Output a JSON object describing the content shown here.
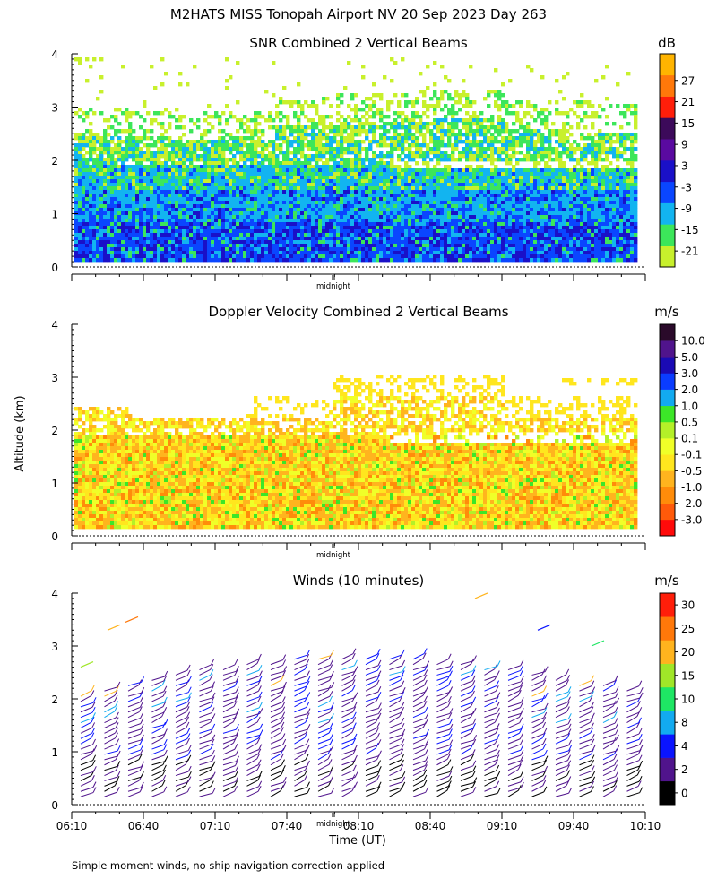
{
  "title": "M2HATS MISS Tonopah Airport NV  20 Sep 2023 Day 263",
  "y_axis_label": "Altitude (km)",
  "x_axis_label": "Time (UT)",
  "midnight_label": "midnight",
  "footnote": "Simple moment winds, no ship navigation correction applied",
  "chart_data": [
    {
      "type": "heatmap",
      "title": "SNR Combined 2 Vertical Beams",
      "unit": "dB",
      "ylabel": "",
      "ylim": [
        0,
        4
      ],
      "yticks": [
        "0",
        "1",
        "2",
        "3",
        "4"
      ],
      "colorbar_labels": [
        "-21",
        "-15",
        "-9",
        "-3",
        "3",
        "9",
        "15",
        "21",
        "27"
      ],
      "colorbar_colors": [
        "#c8f02c",
        "#3ce65a",
        "#12b4f0",
        "#0a46ff",
        "#1a10c8",
        "#5a0aa0",
        "#3c0a5a",
        "#ff1e0a",
        "#ff780a",
        "#ffb400"
      ]
    },
    {
      "type": "heatmap",
      "title": "Doppler Velocity Combined 2 Vertical Beams",
      "unit": "m/s",
      "ylabel": "Altitude (km)",
      "ylim": [
        0,
        4
      ],
      "yticks": [
        "0",
        "1",
        "2",
        "3",
        "4"
      ],
      "colorbar_labels": [
        "-3.0",
        "-2.0",
        "-1.0",
        "-0.5",
        "-0.1",
        "0.1",
        "0.5",
        "1.0",
        "2.0",
        "3.0",
        "5.0",
        "10.0"
      ],
      "colorbar_colors": [
        "#ff0a0a",
        "#ff5a0a",
        "#ff8c0a",
        "#ffb41e",
        "#ffe61e",
        "#f0ff28",
        "#b4f028",
        "#3ce628",
        "#12aaf0",
        "#0a3cff",
        "#1a0ab4",
        "#50148c",
        "#2a0a2a"
      ]
    },
    {
      "type": "wind-barbs",
      "title": "Winds (10 minutes)",
      "unit": "m/s",
      "xlabel": "Time (UT)",
      "ylim": [
        0,
        4
      ],
      "yticks": [
        "0",
        "1",
        "2",
        "3",
        "4"
      ],
      "xticks": [
        "06:10",
        "06:40",
        "07:10",
        "07:40",
        "08:10",
        "08:40",
        "09:10",
        "09:40",
        "10:10"
      ],
      "colorbar_labels": [
        "0",
        "2",
        "4",
        "8",
        "10",
        "15",
        "20",
        "25",
        "30"
      ],
      "colorbar_colors": [
        "#000000",
        "#50148c",
        "#0a14ff",
        "#12aaf0",
        "#1ee664",
        "#a0e628",
        "#ffb41e",
        "#ff780a",
        "#ff1e0a"
      ]
    }
  ]
}
